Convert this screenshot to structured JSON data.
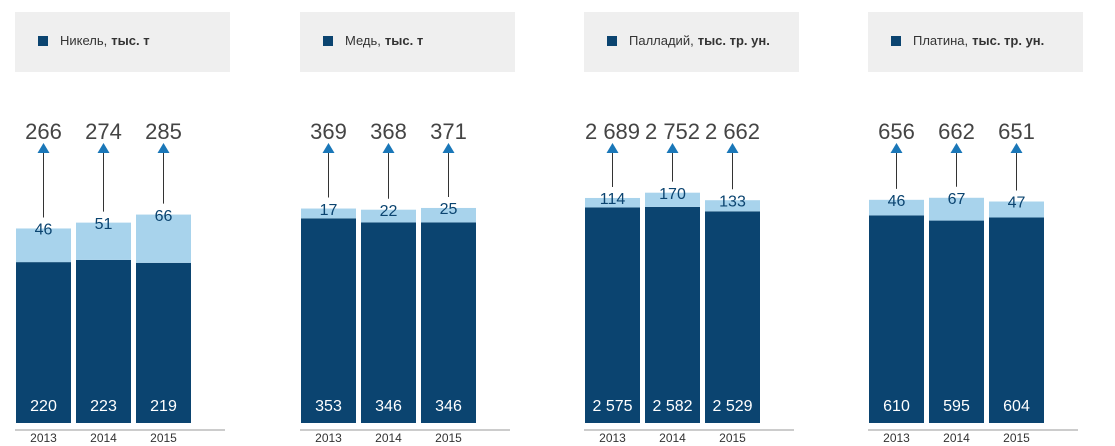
{
  "chart_data": [
    {
      "type": "bar",
      "stacked": true,
      "title": "Никель,",
      "unit": "тыс. т",
      "categories": [
        "2013",
        "2014",
        "2015"
      ],
      "series": [
        {
          "color": "#0b4470",
          "values": [
            220,
            223,
            219
          ]
        },
        {
          "color": "#a8d3ec",
          "values": [
            46,
            51,
            66
          ]
        }
      ],
      "totals": [
        266,
        274,
        285
      ],
      "ylim": [
        0,
        428
      ]
    },
    {
      "type": "bar",
      "stacked": true,
      "title": "Медь,",
      "unit": "тыс. т",
      "categories": [
        "2013",
        "2014",
        "2015"
      ],
      "series": [
        {
          "color": "#0b4470",
          "values": [
            353,
            346,
            346
          ]
        },
        {
          "color": "#a8d3ec",
          "values": [
            17,
            22,
            25
          ]
        }
      ],
      "totals": [
        369,
        368,
        371
      ],
      "ylim": [
        0,
        540
      ]
    },
    {
      "type": "bar",
      "stacked": true,
      "title": "Палладий,",
      "unit": "тыс. тр. ун.",
      "categories": [
        "2013",
        "2014",
        "2015"
      ],
      "series": [
        {
          "color": "#0b4470",
          "values": [
            2575,
            2582,
            2529
          ],
          "value_labels": [
            "2 575",
            "2 582",
            "2 529"
          ]
        },
        {
          "color": "#a8d3ec",
          "values": [
            114,
            170,
            133
          ]
        }
      ],
      "totals": [
        2689,
        2752,
        2662
      ],
      "totals_labels": [
        "2 689",
        "2 752",
        "2 662"
      ],
      "ylim": [
        0,
        3740
      ]
    },
    {
      "type": "bar",
      "stacked": true,
      "title": "Платина,",
      "unit": "тыс. тр. ун.",
      "categories": [
        "2013",
        "2014",
        "2015"
      ],
      "series": [
        {
          "color": "#0b4470",
          "values": [
            610,
            595,
            604
          ]
        },
        {
          "color": "#a8d3ec",
          "values": [
            46,
            67,
            47
          ]
        }
      ],
      "totals": [
        656,
        662,
        651
      ],
      "ylim": [
        0,
        920
      ]
    }
  ]
}
